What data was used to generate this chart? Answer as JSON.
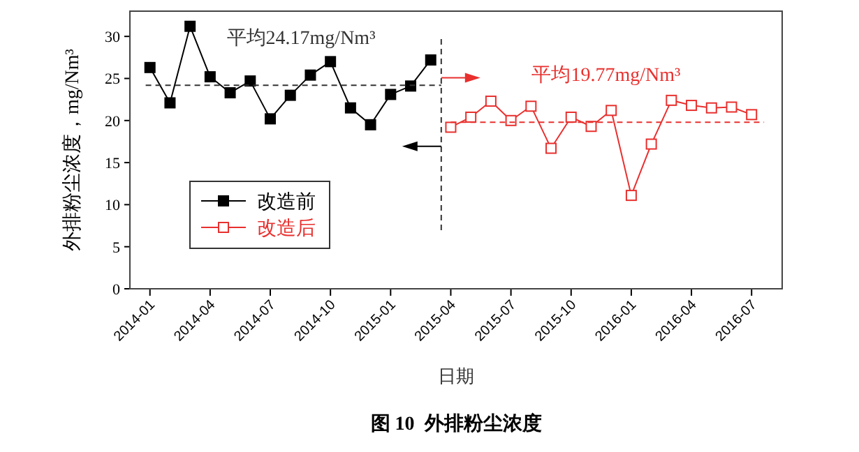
{
  "chart_data": {
    "type": "line",
    "title": "图 10  外排粉尘浓度",
    "xlabel": "日期",
    "ylabel": "外排粉尘浓度，mg/Nm³",
    "xlim": [
      "2013-12-01",
      "2016-08-17"
    ],
    "ylim": [
      0,
      33
    ],
    "xticks": [
      "2014-01",
      "2014-04",
      "2014-07",
      "2014-10",
      "2015-01",
      "2015-04",
      "2015-07",
      "2015-10",
      "2016-01",
      "2016-04",
      "2016-07"
    ],
    "yticks": [
      0,
      5,
      10,
      15,
      20,
      25,
      30
    ],
    "grid": false,
    "legend": "left",
    "marker": "square",
    "line_style": "solid",
    "series": [
      {
        "name": "改造前",
        "color": "#000000",
        "x": [
          "2014-01",
          "2014-02",
          "2014-03",
          "2014-04",
          "2014-05",
          "2014-06",
          "2014-07",
          "2014-08",
          "2014-09",
          "2014-10",
          "2014-11",
          "2014-12",
          "2015-01",
          "2015-02",
          "2015-03"
        ],
        "values": [
          26.3,
          22.1,
          31.2,
          25.2,
          23.3,
          24.7,
          20.2,
          23.0,
          25.4,
          27.0,
          21.5,
          19.5,
          23.1,
          24.1,
          27.2
        ]
      },
      {
        "name": "改造后",
        "color": "#e8302e",
        "x": [
          "2015-04",
          "2015-05",
          "2015-06",
          "2015-07",
          "2015-08",
          "2015-09",
          "2015-10",
          "2015-11",
          "2015-12",
          "2016-01",
          "2016-02",
          "2016-03",
          "2016-04",
          "2016-05",
          "2016-06",
          "2016-07"
        ],
        "values": [
          19.2,
          20.4,
          22.3,
          20.0,
          21.7,
          16.7,
          20.4,
          19.3,
          21.2,
          11.1,
          17.2,
          22.4,
          21.8,
          21.5,
          21.6,
          20.7
        ]
      },
      {
        "type": "line",
        "color": "#333333",
        "x": [
          "2013-12-25",
          "2015-03-17"
        ],
        "values": [
          24.2,
          24.2
        ],
        "line_style": "dashed",
        "marker": "none"
      },
      {
        "type": "line",
        "color": "#e8302e",
        "x": [
          "2015-04-01",
          "2016-07-20"
        ],
        "values": [
          19.8,
          19.8
        ],
        "line_style": "dashed",
        "marker": "none"
      }
    ],
    "ref_lines": [
      {
        "axis": "x",
        "value": "2015-03-17",
        "color": "#333333",
        "line_style": "dashed"
      }
    ],
    "annotations": [
      "平均24.17mg/Nm³",
      "平均19.77mg/Nm³"
    ]
  }
}
